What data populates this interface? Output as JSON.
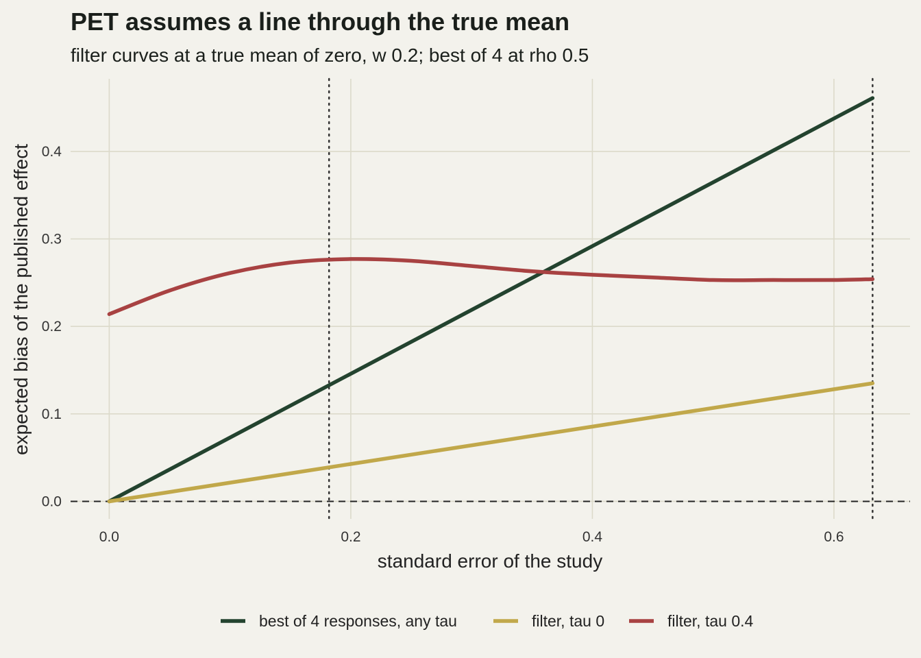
{
  "chart_data": {
    "type": "line",
    "title": "PET assumes a line through the true mean",
    "subtitle": "filter curves at a true mean of zero, w 0.2; best of 4 at rho 0.5",
    "xlabel": "standard error of the study",
    "ylabel": "expected bias of the published effect",
    "xlim": [
      -0.032,
      0.663
    ],
    "ylim": [
      -0.02,
      0.483
    ],
    "x_ticks": [
      0.0,
      0.2,
      0.4,
      0.6
    ],
    "x_tick_labels": [
      "0.0",
      "0.2",
      "0.4",
      "0.6"
    ],
    "y_ticks": [
      0.0,
      0.1,
      0.2,
      0.3,
      0.4
    ],
    "y_tick_labels": [
      "0.0",
      "0.1",
      "0.2",
      "0.3",
      "0.4"
    ],
    "grid": true,
    "legend_position": "bottom",
    "reference_lines": {
      "horizontal_dashed_y": 0.0,
      "vertical_dotted_x": [
        0.182,
        0.632
      ]
    },
    "series": [
      {
        "name": "best of 4 responses, any tau",
        "color": "#23432f",
        "x": [
          0.0,
          0.632
        ],
        "y": [
          0.0,
          0.461
        ]
      },
      {
        "name": "filter, tau 0",
        "color": "#c1a84a",
        "x": [
          0.0,
          0.632
        ],
        "y": [
          0.0,
          0.135
        ]
      },
      {
        "name": "filter, tau 0.4",
        "color": "#a84242",
        "x": [
          0.0,
          0.05,
          0.1,
          0.15,
          0.2,
          0.25,
          0.3,
          0.35,
          0.4,
          0.45,
          0.5,
          0.55,
          0.6,
          0.632
        ],
        "y": [
          0.214,
          0.241,
          0.261,
          0.273,
          0.277,
          0.275,
          0.269,
          0.263,
          0.259,
          0.256,
          0.253,
          0.253,
          0.253,
          0.254
        ]
      }
    ]
  }
}
